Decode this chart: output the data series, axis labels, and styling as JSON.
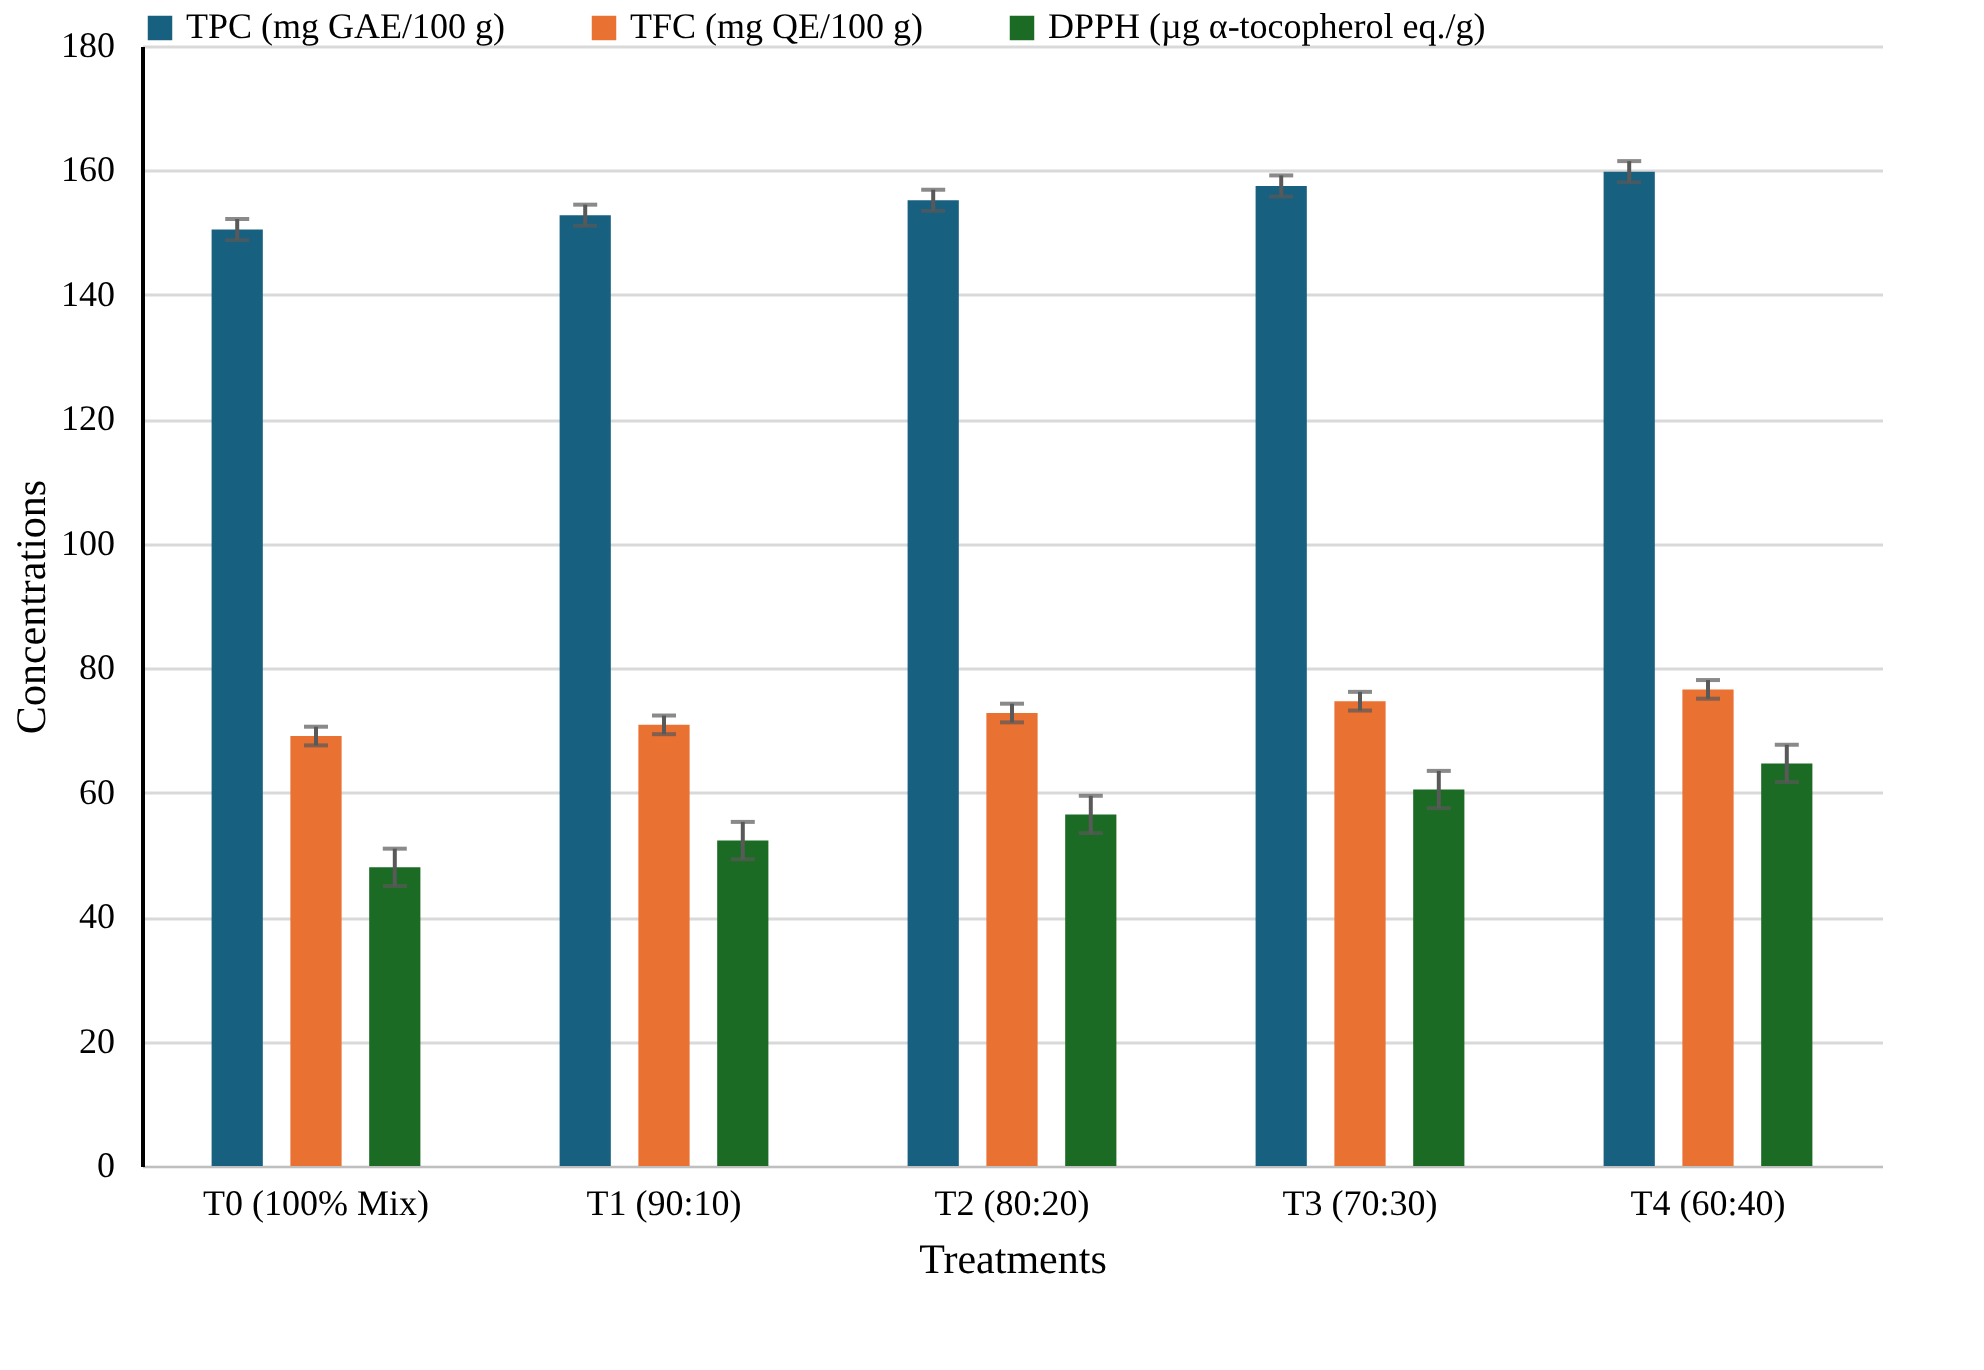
{
  "chart_data": {
    "type": "bar",
    "xlabel": "Treatments",
    "ylabel": "Concentrations",
    "categories": [
      "T0 (100% Mix)",
      "T1 (90:10)",
      "T2 (80:20)",
      "T3 (70:30)",
      "T4 (60:40)"
    ],
    "series": [
      {
        "name": "TPC (mg GAE/100 g)",
        "color": "#17607f",
        "values": [
          150.5,
          152.8,
          155.2,
          157.5,
          159.8
        ],
        "errors": [
          1.7,
          1.7,
          1.7,
          1.7,
          1.7
        ]
      },
      {
        "name": "TFC (mg QE/100 g)",
        "color": "#e97132",
        "values": [
          69.1,
          70.9,
          72.8,
          74.7,
          76.6
        ],
        "errors": [
          1.5,
          1.5,
          1.5,
          1.5,
          1.5
        ]
      },
      {
        "name": "DPPH (µg α-tocopherol eq./g)",
        "color": "#1b6b24",
        "values": [
          48.0,
          52.3,
          56.5,
          60.5,
          64.7
        ],
        "errors": [
          3,
          3,
          3,
          3,
          3
        ]
      }
    ],
    "ylim": [
      0,
      180
    ],
    "yticks": [
      0,
      20,
      40,
      60,
      80,
      100,
      120,
      140,
      160,
      180
    ],
    "grid": "y",
    "legend": "top"
  }
}
